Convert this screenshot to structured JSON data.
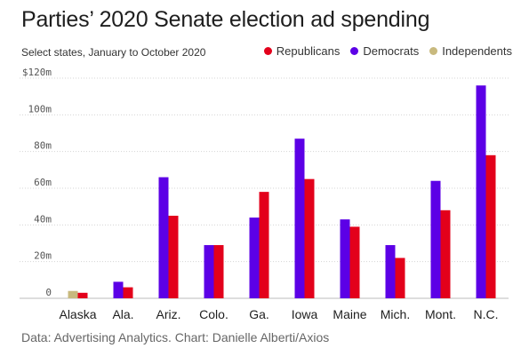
{
  "chart_data": {
    "type": "bar",
    "title": "Parties’ 2020 Senate election ad spending",
    "subtitle": "Select states, January to October 2020",
    "source": "Data: Advertising Analytics. Chart: Danielle Alberti/Axios",
    "categories": [
      "Alaska",
      "Ala.",
      "Ariz.",
      "Colo.",
      "Ga.",
      "Iowa",
      "Maine",
      "Mich.",
      "Mont.",
      "N.C."
    ],
    "series": [
      {
        "name": "Independents",
        "color": "#c8b97e",
        "values": [
          4,
          null,
          null,
          null,
          null,
          null,
          null,
          null,
          null,
          null
        ]
      },
      {
        "name": "Democrats",
        "color": "#5c00e6",
        "values": [
          null,
          9,
          66,
          29,
          44,
          87,
          43,
          29,
          64,
          116
        ]
      },
      {
        "name": "Republicans",
        "color": "#e3001b",
        "values": [
          3,
          6,
          45,
          29,
          58,
          65,
          39,
          22,
          48,
          78
        ]
      }
    ],
    "legend_order": [
      "Republicans",
      "Democrats",
      "Independents"
    ],
    "legend_position": "top-right",
    "ylim": [
      0,
      120
    ],
    "yticks": [
      0,
      20,
      40,
      60,
      80,
      100,
      120
    ],
    "ytick_labels": [
      "0",
      "20m",
      "40m",
      "60m",
      "80m",
      "100m",
      "$120m"
    ],
    "grid": true
  }
}
